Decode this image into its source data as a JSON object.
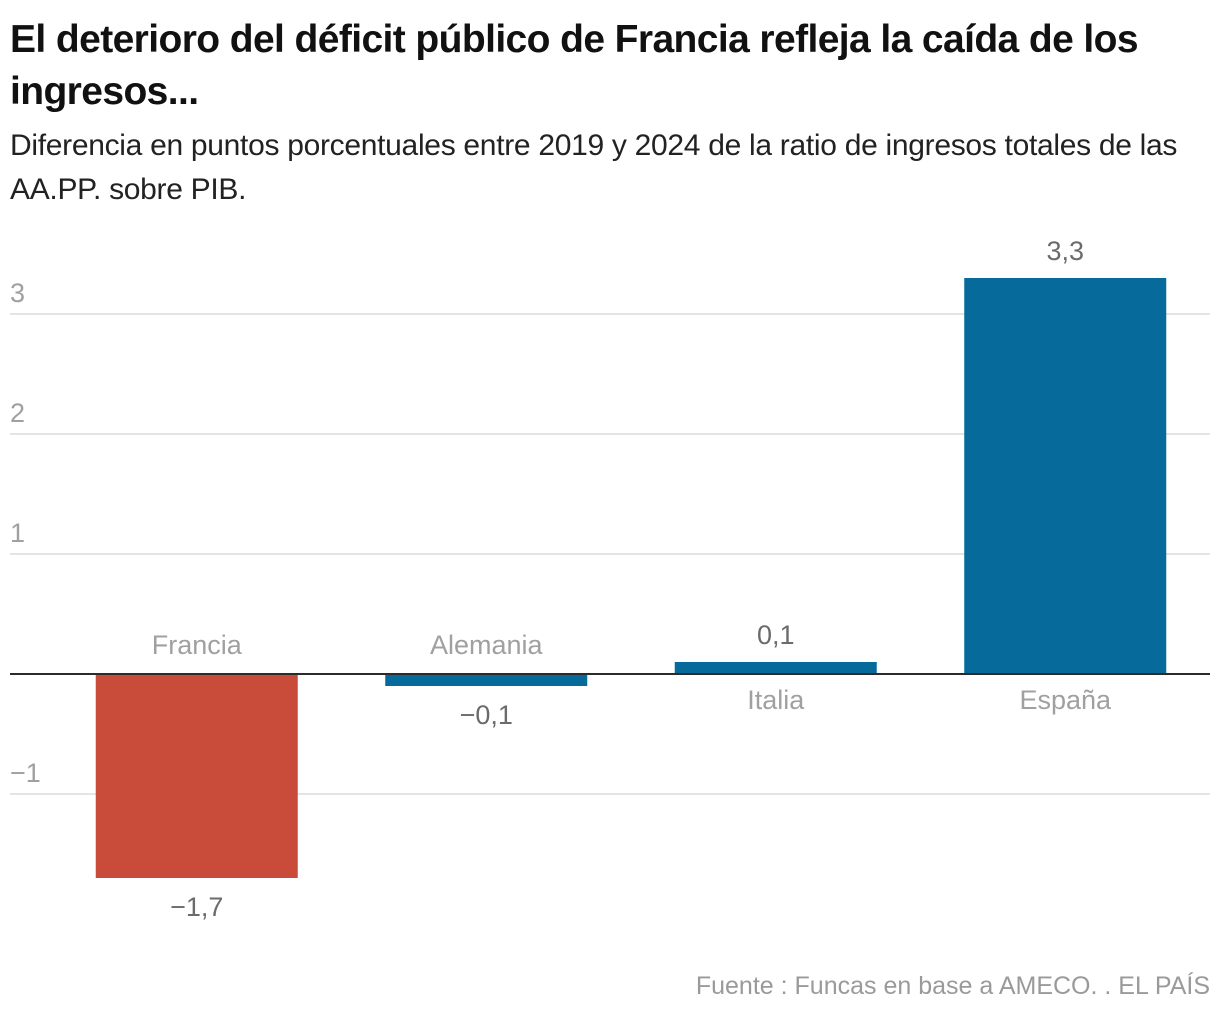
{
  "header": {
    "title": "El deterioro del déficit público de Francia refleja la caída de los ingresos...",
    "subtitle": "Diferencia en puntos porcentuales entre 2019 y 2024 de la ratio de ingresos totales de las AA.PP. sobre PIB."
  },
  "footer": {
    "source": "Fuente : Funcas en base a AMECO. . EL PAÍS"
  },
  "colors": {
    "negative_highlight": "#c94c3a",
    "bar": "#066a9b",
    "gridline": "#e4e4e4",
    "zero_line": "#2b2b2b",
    "tick_label": "#a0a0a0",
    "value_label": "#6b6b6b",
    "category_label": "#a0a0a0"
  },
  "chart_data": {
    "type": "bar",
    "title": "El deterioro del déficit público de Francia refleja la caída de los ingresos...",
    "subtitle": "Diferencia en puntos porcentuales entre 2019 y 2024 de la ratio de ingresos totales de las AA.PP. sobre PIB.",
    "xlabel": "",
    "ylabel": "",
    "categories": [
      "Francia",
      "Alemania",
      "Italia",
      "España"
    ],
    "values": [
      -1.7,
      -0.1,
      0.1,
      3.3
    ],
    "value_labels": [
      "−1,7",
      "−0,1",
      "0,1",
      "3,3"
    ],
    "bar_colors": [
      "#c94c3a",
      "#066a9b",
      "#066a9b",
      "#066a9b"
    ],
    "yticks": [
      3,
      2,
      1,
      -1
    ],
    "ytick_labels": [
      "3",
      "2",
      "1",
      "−1"
    ],
    "ylim": [
      -2.2,
      3.6
    ],
    "grid": true,
    "legend": "none",
    "source": "Fuente : Funcas en base a AMECO. . EL PAÍS"
  }
}
